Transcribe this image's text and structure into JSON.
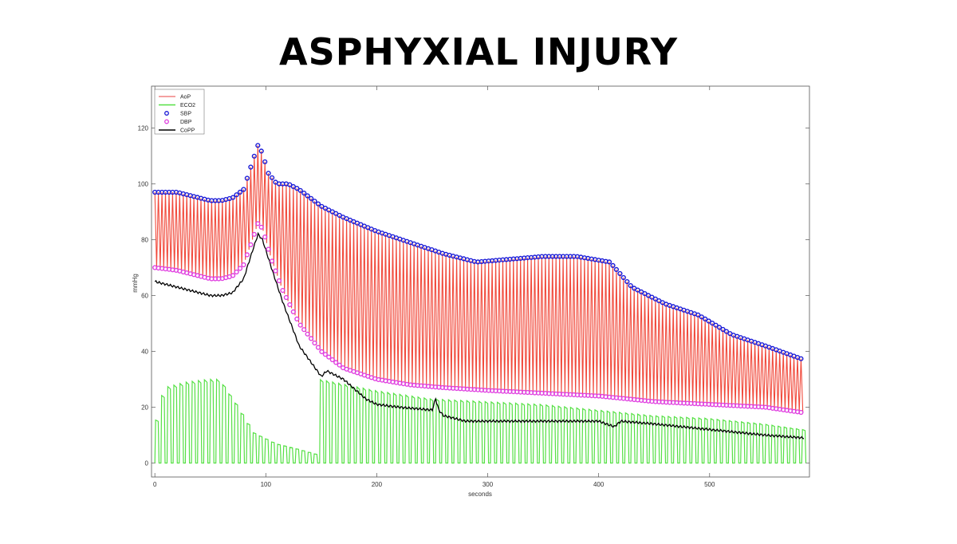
{
  "title": "ASPHYXIAL INJURY",
  "chart_data": {
    "type": "line",
    "xlabel": "seconds",
    "ylabel": "mmHg",
    "xlim": [
      -3,
      590
    ],
    "ylim": [
      -5,
      135
    ],
    "xticks": [
      0,
      100,
      200,
      300,
      400,
      500
    ],
    "yticks": [
      0,
      20,
      40,
      60,
      80,
      100,
      120
    ],
    "legend_position": "top-left",
    "legend": [
      {
        "name": "AoP",
        "style": "line",
        "color": "#f08080"
      },
      {
        "name": "ECO2",
        "style": "line",
        "color": "#55e044"
      },
      {
        "name": "SBP",
        "style": "marker",
        "color": "#1a1ad6"
      },
      {
        "name": "DBP",
        "style": "marker",
        "color": "#e040e0"
      },
      {
        "name": "CoPP",
        "style": "line",
        "color": "#000000"
      }
    ],
    "aop_beat_period_s": 3.2,
    "series": [
      {
        "name": "SBP",
        "color": "#1a1ad6",
        "x": [
          0,
          20,
          40,
          50,
          60,
          70,
          80,
          88,
          93,
          97,
          102,
          110,
          120,
          130,
          140,
          150,
          170,
          200,
          230,
          260,
          290,
          320,
          350,
          380,
          410,
          430,
          460,
          490,
          520,
          550,
          585
        ],
        "y": [
          97,
          97,
          95,
          94,
          94,
          95,
          98,
          108,
          114,
          111,
          104,
          100,
          100,
          98,
          95,
          92,
          88,
          83,
          79,
          75,
          72,
          73,
          74,
          74,
          72,
          63,
          57,
          53,
          46,
          42,
          37
        ]
      },
      {
        "name": "DBP",
        "color": "#e040e0",
        "x": [
          0,
          20,
          40,
          50,
          60,
          70,
          80,
          88,
          93,
          97,
          105,
          115,
          130,
          150,
          170,
          200,
          230,
          260,
          300,
          350,
          400,
          450,
          500,
          550,
          585
        ],
        "y": [
          70,
          69,
          67,
          66,
          66,
          67,
          71,
          80,
          86,
          84,
          73,
          62,
          50,
          40,
          34,
          30,
          28,
          27,
          26,
          25,
          24,
          22,
          21,
          20,
          18
        ]
      },
      {
        "name": "CoPP",
        "color": "#000000",
        "x": [
          0,
          10,
          20,
          30,
          40,
          50,
          60,
          70,
          80,
          88,
          93,
          97,
          105,
          115,
          130,
          150,
          155,
          170,
          190,
          200,
          220,
          250,
          253,
          256,
          260,
          280,
          300,
          350,
          400,
          414,
          420,
          450,
          500,
          550,
          585
        ],
        "y": [
          65,
          64,
          63,
          62,
          61,
          60,
          60,
          61,
          66,
          76,
          82,
          80,
          70,
          58,
          42,
          31,
          33,
          30,
          23,
          21,
          20,
          19,
          23,
          19,
          17,
          15,
          15,
          15,
          15,
          13,
          15,
          14,
          12,
          10,
          9
        ]
      },
      {
        "name": "ECO2",
        "color": "#55e044",
        "x": [
          0,
          10,
          30,
          50,
          60,
          75,
          90,
          110,
          130,
          148,
          150,
          200,
          250,
          300,
          350,
          400,
          450,
          500,
          550,
          585
        ],
        "y": [
          11,
          27,
          29,
          30,
          30,
          21,
          11,
          7,
          5,
          3,
          30,
          26,
          23,
          22,
          21,
          19,
          17,
          16,
          14,
          12
        ]
      }
    ]
  }
}
